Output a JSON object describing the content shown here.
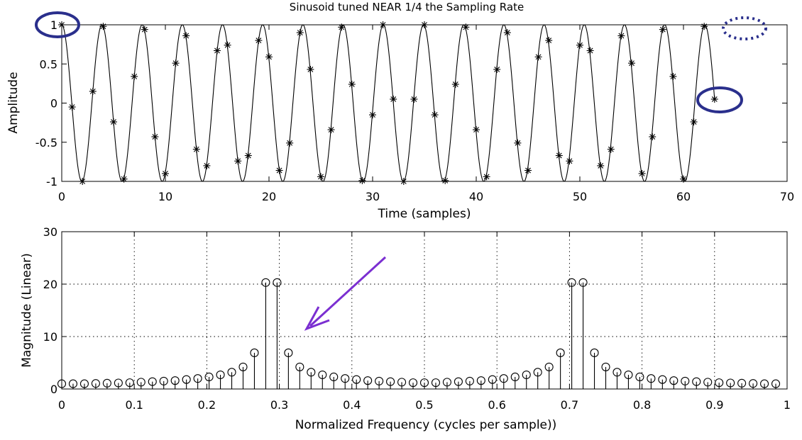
{
  "chart_data": [
    {
      "type": "line",
      "title": "Sinusoid tuned NEAR 1/4 the Sampling Rate",
      "xlabel": "Time (samples)",
      "ylabel": "Amplitude",
      "xlim": [
        0,
        70
      ],
      "ylim": [
        -1,
        1
      ],
      "xticks": [
        0,
        10,
        20,
        30,
        40,
        50,
        60,
        70
      ],
      "yticks": [
        -1,
        -0.5,
        0,
        0.5,
        1
      ],
      "grid": false,
      "series": [
        {
          "kind": "continuous-line",
          "frequency_cycles_per_sample": 0.2578,
          "x_range": [
            0,
            63
          ]
        },
        {
          "kind": "sample-markers",
          "marker": "asterisk",
          "x": [
            0,
            1,
            2,
            3,
            4,
            5,
            6,
            7,
            8,
            9,
            10,
            11,
            12,
            13,
            14,
            15,
            16,
            17,
            18,
            19,
            20,
            21,
            22,
            23,
            24,
            25,
            26,
            27,
            28,
            29,
            30,
            31,
            32,
            33,
            34,
            35,
            36,
            37,
            38,
            39,
            40,
            41,
            42,
            43,
            44,
            45,
            46,
            47,
            48,
            49,
            50,
            51,
            52,
            53,
            54,
            55,
            56,
            57,
            58,
            59,
            60,
            61,
            62,
            63
          ],
          "y": [
            1.0,
            -0.05,
            -1.0,
            0.15,
            0.98,
            -0.24,
            -0.97,
            0.34,
            0.94,
            -0.43,
            -0.9,
            0.51,
            0.86,
            -0.59,
            -0.8,
            0.67,
            0.74,
            -0.74,
            -0.67,
            0.8,
            0.59,
            -0.86,
            -0.51,
            0.9,
            0.43,
            -0.94,
            -0.34,
            0.97,
            0.24,
            -0.99,
            -0.15,
            1.0,
            0.05,
            -1.0,
            0.05,
            1.0,
            -0.15,
            -0.99,
            0.24,
            0.97,
            -0.34,
            -0.94,
            0.43,
            0.9,
            -0.51,
            -0.86,
            0.59,
            0.8,
            -0.67,
            -0.74,
            0.74,
            0.67,
            -0.8,
            -0.59,
            0.86,
            0.51,
            -0.9,
            -0.43,
            0.94,
            0.34,
            -0.97,
            -0.24,
            0.98,
            0.05
          ]
        }
      ],
      "annotations": [
        {
          "shape": "ellipse",
          "style": "solid",
          "color": "#2a2f8c",
          "near": {
            "x": 0,
            "y": 1
          }
        },
        {
          "shape": "ellipse",
          "style": "solid",
          "color": "#2a2f8c",
          "near": {
            "x": 63,
            "y": 0.05
          }
        },
        {
          "shape": "ellipse",
          "style": "dotted",
          "color": "#2a2f8c",
          "near": {
            "x": 64,
            "y": 1
          }
        }
      ]
    },
    {
      "type": "stem",
      "xlabel": "Normalized Frequency (cycles per sample))",
      "ylabel": "Magnitude (Linear)",
      "xlim": [
        0,
        1
      ],
      "ylim": [
        0,
        30
      ],
      "xticks": [
        "0",
        "0.1",
        "0.2",
        "0.3",
        "0.4",
        "0.5",
        "0.6",
        "0.7",
        "0.8",
        "0.9",
        "1"
      ],
      "yticks": [
        "0",
        "10",
        "20",
        "30"
      ],
      "grid": true,
      "marker": "circle",
      "x_step": 0.015625,
      "values": [
        1.0,
        1.0,
        1.0,
        1.05,
        1.1,
        1.15,
        1.2,
        1.3,
        1.4,
        1.5,
        1.6,
        1.8,
        2.0,
        2.3,
        2.7,
        3.2,
        4.2,
        6.9,
        20.3,
        20.3,
        6.9,
        4.2,
        3.2,
        2.7,
        2.3,
        2.0,
        1.8,
        1.6,
        1.5,
        1.4,
        1.3,
        1.2,
        1.2,
        1.2,
        1.3,
        1.4,
        1.5,
        1.6,
        1.8,
        2.0,
        2.3,
        2.7,
        3.2,
        4.2,
        6.9,
        20.3,
        20.3,
        6.9,
        4.2,
        3.2,
        2.7,
        2.3,
        2.0,
        1.8,
        1.6,
        1.5,
        1.4,
        1.3,
        1.2,
        1.15,
        1.1,
        1.05,
        1.0,
        1.0
      ],
      "annotations": [
        {
          "shape": "arrow",
          "color": "#7b2fd1",
          "from": {
            "x": 0.45,
            "y": 25.0
          },
          "to": {
            "x": 0.335,
            "y": 11.6
          }
        }
      ]
    }
  ]
}
